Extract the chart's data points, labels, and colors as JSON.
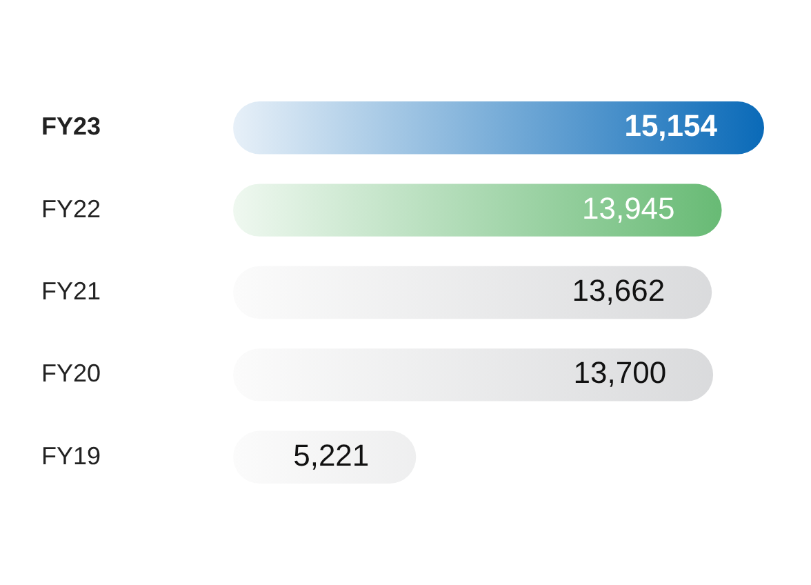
{
  "chart_data": {
    "type": "bar",
    "orientation": "horizontal",
    "categories": [
      "FY23",
      "FY22",
      "FY21",
      "FY20",
      "FY19"
    ],
    "values": [
      15154,
      13945,
      13662,
      13700,
      5221
    ],
    "colors": [
      "#0a6ab8",
      "#5cb56a",
      "#d6d7d9",
      "#d6d7d9",
      "#d6d7d9"
    ],
    "value_labels": [
      "15,154",
      "13,945",
      "13,662",
      "13,700",
      "5,221"
    ]
  }
}
